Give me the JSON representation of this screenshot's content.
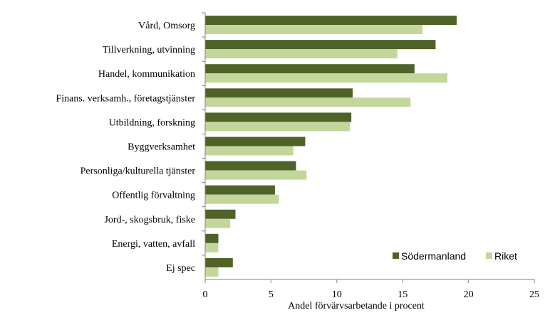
{
  "chart_data": {
    "type": "bar",
    "orientation": "horizontal",
    "categories": [
      "Vård, Omsorg",
      "Tillverkning, utvinning",
      "Handel, kommunikation",
      "Finans. verksamh., företagstjänster",
      "Utbildning, forskning",
      "Byggverksamhet",
      "Personliga/kulturella tjänster",
      "Offentlig förvaltning",
      "Jord-, skogsbruk, fiske",
      "Energi, vatten, avfall",
      "Ej spec"
    ],
    "series": [
      {
        "name": "Södermanland",
        "color": "#4f6228",
        "values": [
          19.1,
          17.5,
          15.9,
          11.2,
          11.1,
          7.6,
          6.9,
          5.3,
          2.3,
          1.0,
          2.1
        ]
      },
      {
        "name": "Riket",
        "color": "#c3d69b",
        "values": [
          16.5,
          14.6,
          18.4,
          15.6,
          11.0,
          6.7,
          7.7,
          5.6,
          1.9,
          1.0,
          1.0
        ]
      }
    ],
    "xlabel": "Andel förvärvsarbetande i procent",
    "ylabel": "",
    "xlim": [
      0,
      25
    ],
    "xticks": [
      0,
      5,
      10,
      15,
      20,
      25
    ],
    "grid": false,
    "legend": "bottom-right"
  }
}
